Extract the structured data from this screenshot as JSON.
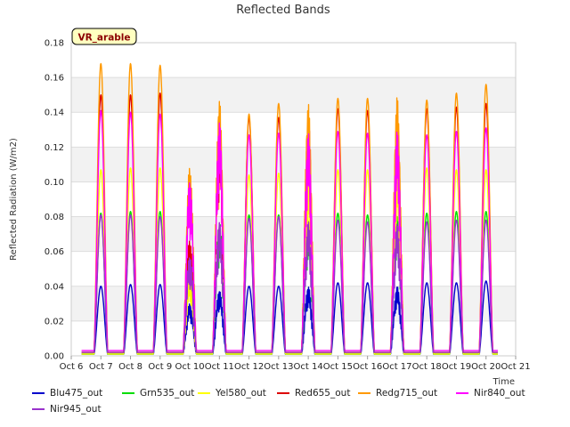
{
  "chart_data": {
    "type": "line",
    "title": "Reflected Bands",
    "xlabel": "Time",
    "ylabel": "Reflected Radiation (W/m2)",
    "badge": "VR_arable",
    "x_tick_labels": [
      "Oct 6",
      "Oct 7",
      "Oct 8",
      "Oct 9",
      "Oct 10",
      "Oct 11",
      "Oct 12",
      "Oct 13",
      "Oct 14",
      "Oct 15",
      "Oct 16",
      "Oct 17",
      "Oct 18",
      "Oct 19",
      "Oct 20",
      "Oct 21"
    ],
    "xlim": [
      6,
      21
    ],
    "ylim": [
      0,
      0.18
    ],
    "y_ticks": [
      "0.00",
      "0.02",
      "0.04",
      "0.06",
      "0.08",
      "0.10",
      "0.12",
      "0.14",
      "0.16",
      "0.18"
    ],
    "grid": true,
    "legend_position": "bottom",
    "day_peak_x": [
      7.0,
      8.0,
      9.0,
      10.0,
      11.0,
      12.0,
      13.0,
      14.0,
      15.0,
      16.0,
      17.0,
      18.0,
      19.0,
      20.0
    ],
    "series": [
      {
        "name": "Blu475_out",
        "color": "#0000cc",
        "baseline": 0.001,
        "peaks": [
          0.04,
          0.041,
          0.041,
          0.03,
          0.038,
          0.04,
          0.04,
          0.04,
          0.042,
          0.042,
          0.04,
          0.042,
          0.042,
          0.043
        ]
      },
      {
        "name": "Grn535_out",
        "color": "#00dd00",
        "baseline": 0.001,
        "peaks": [
          0.082,
          0.083,
          0.083,
          0.06,
          0.078,
          0.081,
          0.081,
          0.078,
          0.082,
          0.081,
          0.081,
          0.082,
          0.083,
          0.083
        ]
      },
      {
        "name": "Yel580_out",
        "color": "#ffff00",
        "baseline": 0.001,
        "peaks": [
          0.107,
          0.108,
          0.108,
          0.045,
          0.13,
          0.104,
          0.105,
          0.103,
          0.107,
          0.107,
          0.108,
          0.108,
          0.107,
          0.107
        ]
      },
      {
        "name": "Red655_out",
        "color": "#dd0000",
        "baseline": 0.002,
        "peaks": [
          0.15,
          0.15,
          0.151,
          0.067,
          0.133,
          0.137,
          0.137,
          0.137,
          0.142,
          0.141,
          0.14,
          0.142,
          0.143,
          0.145
        ]
      },
      {
        "name": "Redg715_out",
        "color": "#ff9900",
        "baseline": 0.002,
        "peaks": [
          0.168,
          0.168,
          0.167,
          0.11,
          0.148,
          0.139,
          0.145,
          0.145,
          0.148,
          0.148,
          0.149,
          0.147,
          0.151,
          0.156
        ]
      },
      {
        "name": "Nir840_out",
        "color": "#ff00ff",
        "baseline": 0.003,
        "peaks": [
          0.141,
          0.14,
          0.139,
          0.102,
          0.135,
          0.127,
          0.128,
          0.128,
          0.129,
          0.128,
          0.129,
          0.127,
          0.129,
          0.131
        ]
      },
      {
        "name": "Nir945_out",
        "color": "#9932cc",
        "baseline": 0.002,
        "peaks": [
          0.081,
          0.081,
          0.08,
          0.058,
          0.077,
          0.079,
          0.08,
          0.077,
          0.078,
          0.077,
          0.076,
          0.077,
          0.078,
          0.078
        ]
      }
    ]
  }
}
